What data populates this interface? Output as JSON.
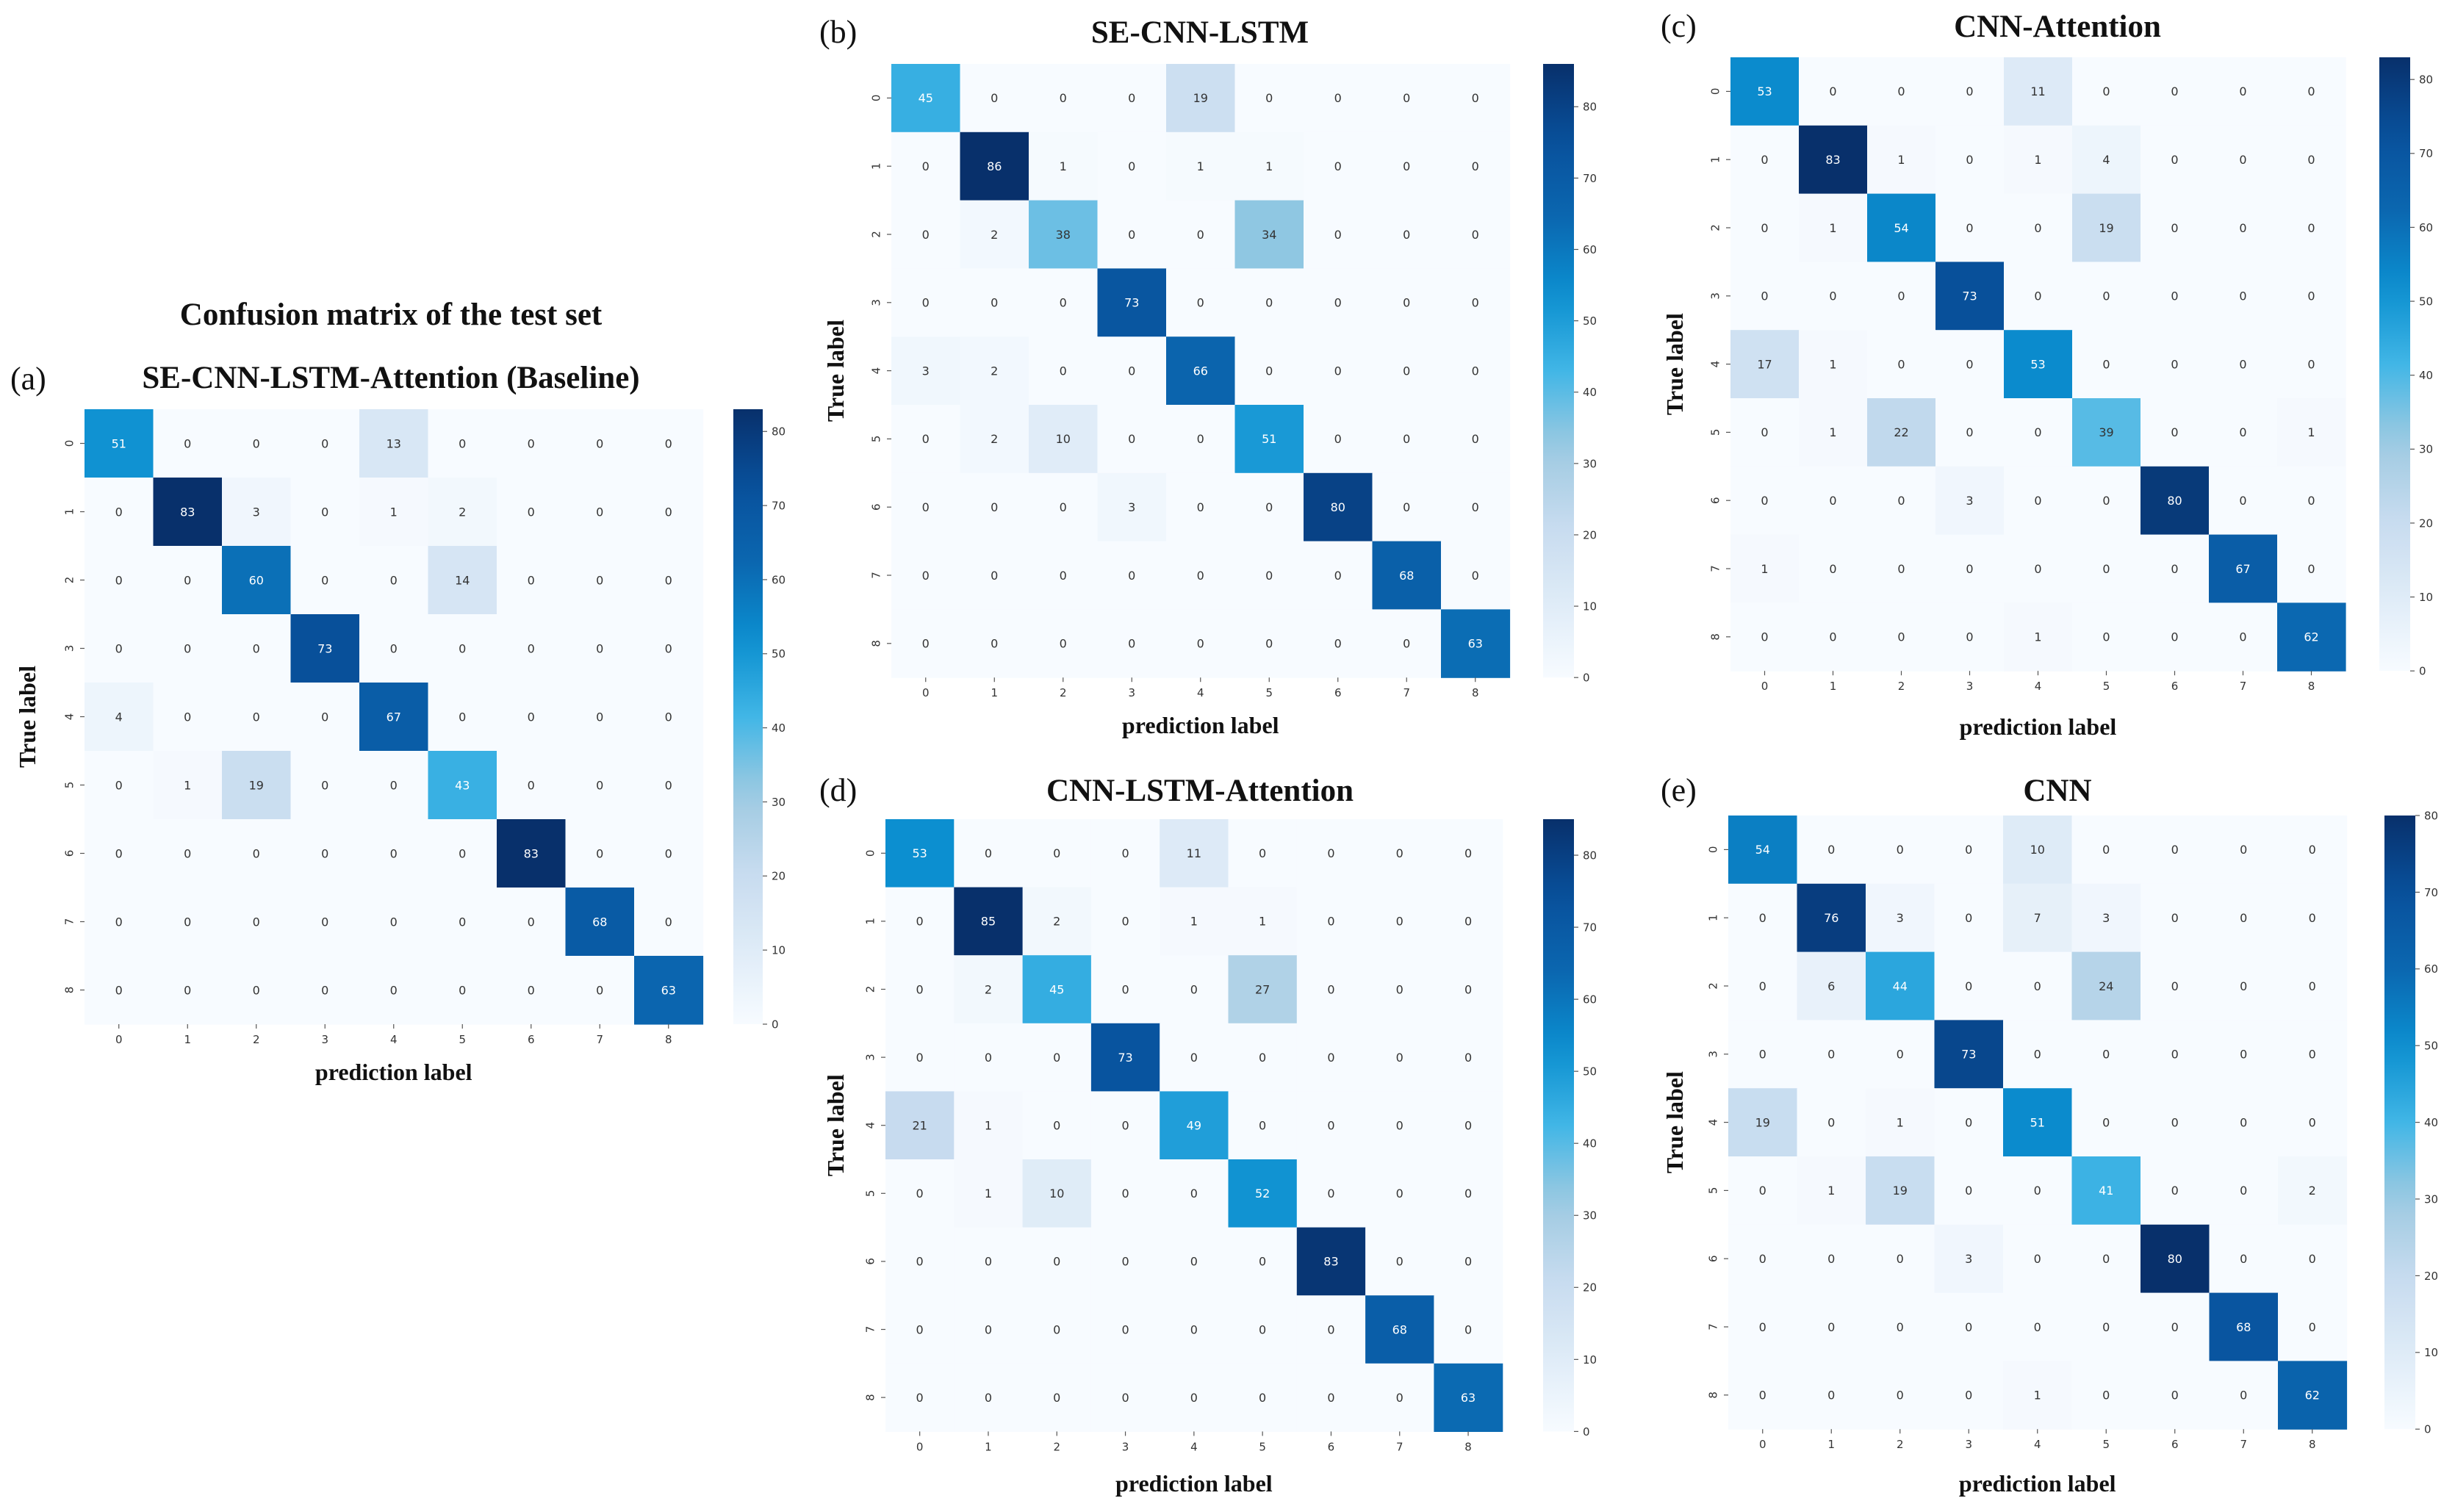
{
  "figure": {
    "suptitle": "Confusion matrix of the test set"
  },
  "colormap": [
    "#f7fbff",
    "#deebf7",
    "#c6dbef",
    "#9ecae1",
    "#41b6e6",
    "#0b8fd0",
    "#0b67b0",
    "#08519c",
    "#08306b"
  ],
  "chart_data": [
    {
      "type": "heatmap",
      "panel_label": "(a)",
      "title": "SE-CNN-LSTM-Attention (Baseline)",
      "xlabel": "prediction label",
      "ylabel": "True label",
      "x_ticks": [
        "0",
        "1",
        "2",
        "3",
        "4",
        "5",
        "6",
        "7",
        "8"
      ],
      "y_ticks": [
        "0",
        "1",
        "2",
        "3",
        "4",
        "5",
        "6",
        "7",
        "8"
      ],
      "vmin": 0,
      "vmax": 83,
      "colorbar_ticks": [
        0,
        10,
        20,
        30,
        40,
        50,
        60,
        70,
        80
      ],
      "values": [
        [
          51,
          0,
          0,
          0,
          13,
          0,
          0,
          0,
          0
        ],
        [
          0,
          83,
          3,
          0,
          1,
          2,
          0,
          0,
          0
        ],
        [
          0,
          0,
          60,
          0,
          0,
          14,
          0,
          0,
          0
        ],
        [
          0,
          0,
          0,
          73,
          0,
          0,
          0,
          0,
          0
        ],
        [
          4,
          0,
          0,
          0,
          67,
          0,
          0,
          0,
          0
        ],
        [
          0,
          1,
          19,
          0,
          0,
          43,
          0,
          0,
          0
        ],
        [
          0,
          0,
          0,
          0,
          0,
          0,
          83,
          0,
          0
        ],
        [
          0,
          0,
          0,
          0,
          0,
          0,
          0,
          68,
          0
        ],
        [
          0,
          0,
          0,
          0,
          0,
          0,
          0,
          0,
          63
        ]
      ]
    },
    {
      "type": "heatmap",
      "panel_label": "(b)",
      "title": "SE-CNN-LSTM",
      "xlabel": "prediction label",
      "ylabel": "True label",
      "x_ticks": [
        "0",
        "1",
        "2",
        "3",
        "4",
        "5",
        "6",
        "7",
        "8"
      ],
      "y_ticks": [
        "0",
        "1",
        "2",
        "3",
        "4",
        "5",
        "6",
        "7",
        "8"
      ],
      "vmin": 0,
      "vmax": 86,
      "colorbar_ticks": [
        0,
        10,
        20,
        30,
        40,
        50,
        60,
        70,
        80
      ],
      "values": [
        [
          45,
          0,
          0,
          0,
          19,
          0,
          0,
          0,
          0
        ],
        [
          0,
          86,
          1,
          0,
          1,
          1,
          0,
          0,
          0
        ],
        [
          0,
          2,
          38,
          0,
          0,
          34,
          0,
          0,
          0
        ],
        [
          0,
          0,
          0,
          73,
          0,
          0,
          0,
          0,
          0
        ],
        [
          3,
          2,
          0,
          0,
          66,
          0,
          0,
          0,
          0
        ],
        [
          0,
          2,
          10,
          0,
          0,
          51,
          0,
          0,
          0
        ],
        [
          0,
          0,
          0,
          3,
          0,
          0,
          80,
          0,
          0
        ],
        [
          0,
          0,
          0,
          0,
          0,
          0,
          0,
          68,
          0
        ],
        [
          0,
          0,
          0,
          0,
          0,
          0,
          0,
          0,
          63
        ]
      ]
    },
    {
      "type": "heatmap",
      "panel_label": "(c)",
      "title": "CNN-Attention",
      "xlabel": "prediction label",
      "ylabel": "True label",
      "x_ticks": [
        "0",
        "1",
        "2",
        "3",
        "4",
        "5",
        "6",
        "7",
        "8"
      ],
      "y_ticks": [
        "0",
        "1",
        "2",
        "3",
        "4",
        "5",
        "6",
        "7",
        "8"
      ],
      "vmin": 0,
      "vmax": 83,
      "colorbar_ticks": [
        0,
        10,
        20,
        30,
        40,
        50,
        60,
        70,
        80
      ],
      "values": [
        [
          53,
          0,
          0,
          0,
          11,
          0,
          0,
          0,
          0
        ],
        [
          0,
          83,
          1,
          0,
          1,
          4,
          0,
          0,
          0
        ],
        [
          0,
          1,
          54,
          0,
          0,
          19,
          0,
          0,
          0
        ],
        [
          0,
          0,
          0,
          73,
          0,
          0,
          0,
          0,
          0
        ],
        [
          17,
          1,
          0,
          0,
          53,
          0,
          0,
          0,
          0
        ],
        [
          0,
          1,
          22,
          0,
          0,
          39,
          0,
          0,
          1
        ],
        [
          0,
          0,
          0,
          3,
          0,
          0,
          80,
          0,
          0
        ],
        [
          1,
          0,
          0,
          0,
          0,
          0,
          0,
          67,
          0
        ],
        [
          0,
          0,
          0,
          0,
          1,
          0,
          0,
          0,
          62
        ]
      ]
    },
    {
      "type": "heatmap",
      "panel_label": "(d)",
      "title": "CNN-LSTM-Attention",
      "xlabel": "prediction label",
      "ylabel": "True label",
      "x_ticks": [
        "0",
        "1",
        "2",
        "3",
        "4",
        "5",
        "6",
        "7",
        "8"
      ],
      "y_ticks": [
        "0",
        "1",
        "2",
        "3",
        "4",
        "5",
        "6",
        "7",
        "8"
      ],
      "vmin": 0,
      "vmax": 85,
      "colorbar_ticks": [
        0,
        10,
        20,
        30,
        40,
        50,
        60,
        70,
        80
      ],
      "values": [
        [
          53,
          0,
          0,
          0,
          11,
          0,
          0,
          0,
          0
        ],
        [
          0,
          85,
          2,
          0,
          1,
          1,
          0,
          0,
          0
        ],
        [
          0,
          2,
          45,
          0,
          0,
          27,
          0,
          0,
          0
        ],
        [
          0,
          0,
          0,
          73,
          0,
          0,
          0,
          0,
          0
        ],
        [
          21,
          1,
          0,
          0,
          49,
          0,
          0,
          0,
          0
        ],
        [
          0,
          1,
          10,
          0,
          0,
          52,
          0,
          0,
          0
        ],
        [
          0,
          0,
          0,
          0,
          0,
          0,
          83,
          0,
          0
        ],
        [
          0,
          0,
          0,
          0,
          0,
          0,
          0,
          68,
          0
        ],
        [
          0,
          0,
          0,
          0,
          0,
          0,
          0,
          0,
          63
        ]
      ]
    },
    {
      "type": "heatmap",
      "panel_label": "(e)",
      "title": "CNN",
      "xlabel": "prediction label",
      "ylabel": "True label",
      "x_ticks": [
        "0",
        "1",
        "2",
        "3",
        "4",
        "5",
        "6",
        "7",
        "8"
      ],
      "y_ticks": [
        "0",
        "1",
        "2",
        "3",
        "4",
        "5",
        "6",
        "7",
        "8"
      ],
      "vmin": 0,
      "vmax": 80,
      "colorbar_ticks": [
        0,
        10,
        20,
        30,
        40,
        50,
        60,
        70,
        80
      ],
      "values": [
        [
          54,
          0,
          0,
          0,
          10,
          0,
          0,
          0,
          0
        ],
        [
          0,
          76,
          3,
          0,
          7,
          3,
          0,
          0,
          0
        ],
        [
          0,
          6,
          44,
          0,
          0,
          24,
          0,
          0,
          0
        ],
        [
          0,
          0,
          0,
          73,
          0,
          0,
          0,
          0,
          0
        ],
        [
          19,
          0,
          1,
          0,
          51,
          0,
          0,
          0,
          0
        ],
        [
          0,
          1,
          19,
          0,
          0,
          41,
          0,
          0,
          2
        ],
        [
          0,
          0,
          0,
          3,
          0,
          0,
          80,
          0,
          0
        ],
        [
          0,
          0,
          0,
          0,
          0,
          0,
          0,
          68,
          0
        ],
        [
          0,
          0,
          0,
          0,
          1,
          0,
          0,
          0,
          62
        ]
      ]
    }
  ]
}
